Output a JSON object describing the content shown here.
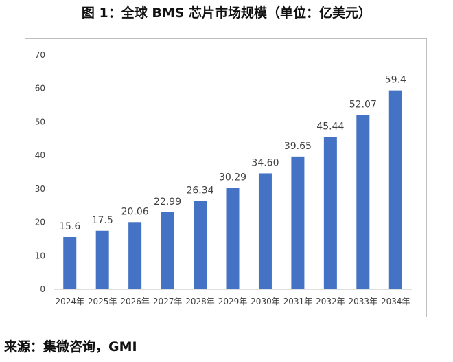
{
  "title": "图 1：全球 BMS 芯片市场规模（单位：亿美元）",
  "source": "来源：集微咨询，GMI",
  "colors": {
    "bar": "#4472C4",
    "axis": "#bfbfbf",
    "text": "#404040"
  },
  "chart_data": {
    "type": "bar",
    "title": "图 1：全球 BMS 芯片市场规模（单位：亿美元）",
    "categories": [
      "2024年",
      "2025年",
      "2026年",
      "2027年",
      "2028年",
      "2029年",
      "2030年",
      "2031年",
      "2032年",
      "2033年",
      "2034年"
    ],
    "values": [
      15.6,
      17.5,
      20.06,
      22.99,
      26.34,
      30.29,
      34.6,
      39.65,
      45.44,
      52.07,
      59.4
    ],
    "value_labels": [
      "15.6",
      "17.5",
      "20.06",
      "22.99",
      "26.34",
      "30.29",
      "34.60",
      "39.65",
      "45.44",
      "52.07",
      "59.4"
    ],
    "ylim": [
      0,
      70
    ],
    "yticks": [
      "0",
      "10",
      "20",
      "30",
      "40",
      "50",
      "60",
      "70"
    ],
    "grid": false,
    "legend": "none"
  }
}
